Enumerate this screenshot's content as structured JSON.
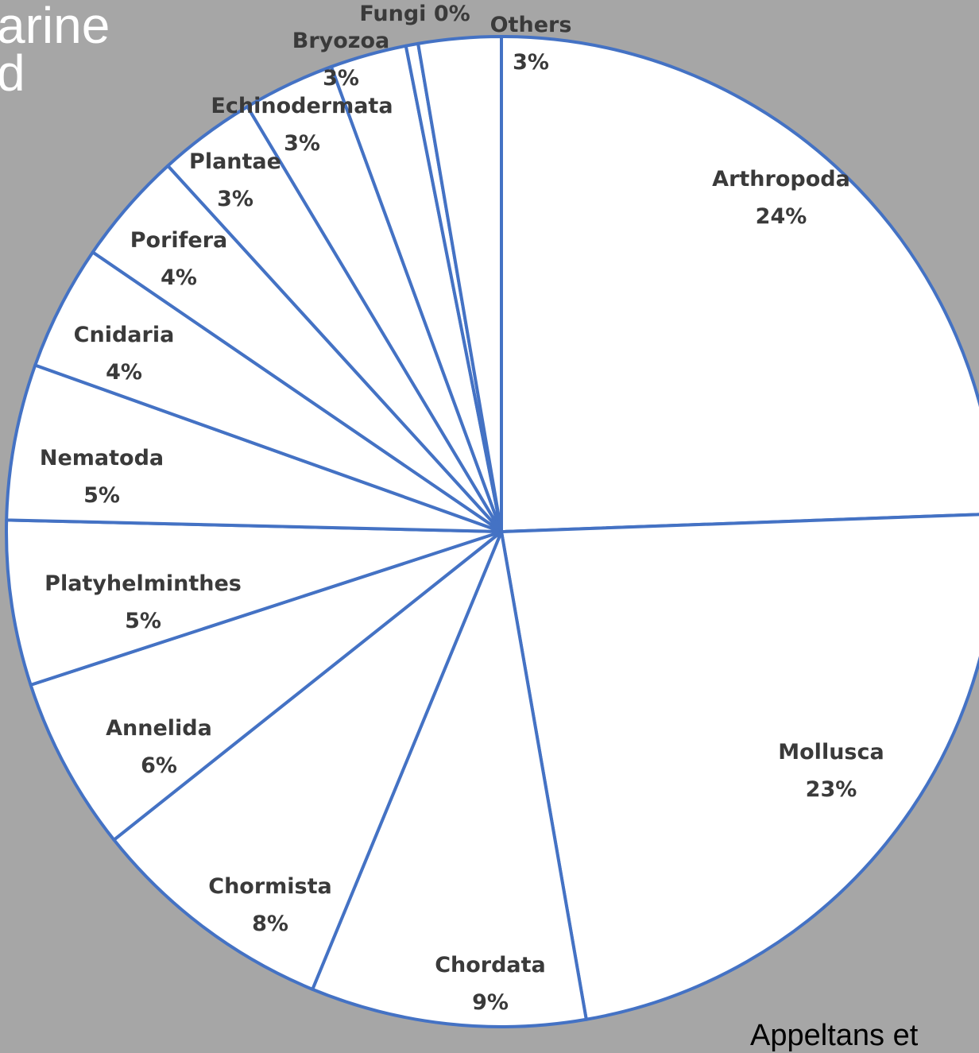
{
  "slide": {
    "title_fragment": "arine\nd",
    "source_fragment": "Appeltans et"
  },
  "colors": {
    "background": "#a6a6a6",
    "slice_fill": "#ffffff",
    "slice_stroke": "#4472c4",
    "label_text": "#3a3a3a"
  },
  "chart_data": {
    "type": "pie",
    "title": "",
    "start": "top, clockwise",
    "slices": [
      {
        "label": "Arthropoda",
        "value_label": "24%",
        "value": 24.5
      },
      {
        "label": "Mollusca",
        "value_label": "23%",
        "value": 22.9
      },
      {
        "label": "Chordata",
        "value_label": "9%",
        "value": 9.0
      },
      {
        "label": "Chormista",
        "value_label": "8%",
        "value": 8.1
      },
      {
        "label": "Annelida",
        "value_label": "6%",
        "value": 5.7
      },
      {
        "label": "Platyhelminthes",
        "value_label": "5%",
        "value": 5.4
      },
      {
        "label": "Nematoda",
        "value_label": "5%",
        "value": 5.1
      },
      {
        "label": "Cnidaria",
        "value_label": "4%",
        "value": 4.1
      },
      {
        "label": "Porifera",
        "value_label": "4%",
        "value": 3.7
      },
      {
        "label": "Plantae",
        "value_label": "3%",
        "value": 3.2
      },
      {
        "label": "Echinodermata",
        "value_label": "3%",
        "value": 3.0
      },
      {
        "label": "Bryozoa",
        "value_label": "3%",
        "value": 2.5
      },
      {
        "label": "Fungi",
        "value_label": "0%",
        "value": 0.4
      },
      {
        "label": "Others",
        "value_label": "3%",
        "value": 2.7
      }
    ]
  }
}
